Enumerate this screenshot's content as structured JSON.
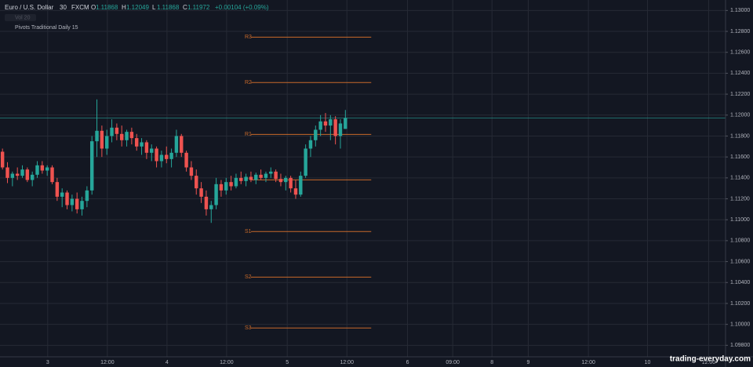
{
  "chart_data": {
    "type": "candlestick",
    "title": "Euro / U.S. Dollar",
    "interval": "30",
    "source": "FXCM",
    "ohlc_letters": [
      "O",
      "H",
      "L",
      "C"
    ],
    "change": "+0.00104 (+0.09%)",
    "volume_label": "Vol 20",
    "indicator": "Pivots Traditional Daily 15",
    "watermark": "trading-everyday.com",
    "up_color": "#26a69a",
    "down_color": "#ef5350",
    "pivot_color": "#c8692a",
    "grid": true,
    "ylim": [
      1.0969,
      1.131
    ],
    "xlim": [
      0,
      146
    ],
    "yticks": [
      {
        "value": 1.13,
        "label": "1.13000"
      },
      {
        "value": 1.128,
        "label": "1.12800"
      },
      {
        "value": 1.126,
        "label": "1.12600"
      },
      {
        "value": 1.124,
        "label": "1.12400"
      },
      {
        "value": 1.122,
        "label": "1.12200"
      },
      {
        "value": 1.12,
        "label": "1.12000"
      },
      {
        "value": 1.118,
        "label": "1.11800"
      },
      {
        "value": 1.116,
        "label": "1.11600"
      },
      {
        "value": 1.114,
        "label": "1.11400"
      },
      {
        "value": 1.112,
        "label": "1.11200"
      },
      {
        "value": 1.11,
        "label": "1.11000"
      },
      {
        "value": 1.108,
        "label": "1.10800"
      },
      {
        "value": 1.106,
        "label": "1.10600"
      },
      {
        "value": 1.104,
        "label": "1.10400"
      },
      {
        "value": 1.102,
        "label": "1.10200"
      },
      {
        "value": 1.1,
        "label": "1.10000"
      },
      {
        "value": 1.098,
        "label": "1.09800"
      }
    ],
    "xticks": [
      {
        "value": 9.6,
        "label": "3"
      },
      {
        "value": 21.6,
        "label": "12:00"
      },
      {
        "value": 33.6,
        "label": "4"
      },
      {
        "value": 45.6,
        "label": "12:00"
      },
      {
        "value": 57.8,
        "label": "5"
      },
      {
        "value": 69.8,
        "label": "12:00"
      },
      {
        "value": 82,
        "label": "6"
      },
      {
        "value": 91.1,
        "label": "09:00"
      },
      {
        "value": 99,
        "label": "8"
      },
      {
        "value": 106.3,
        "label": "9"
      },
      {
        "value": 118.4,
        "label": "12:00"
      },
      {
        "value": 130.3,
        "label": "10"
      },
      {
        "value": 142.6,
        "label": "12:00"
      }
    ],
    "x": [
      0.5,
      1.5,
      2.5,
      3.5,
      4.5,
      5.5,
      6.5,
      7.5,
      8.5,
      9.5,
      10.5,
      11.5,
      12.5,
      13.5,
      14.5,
      15.5,
      16.5,
      17.5,
      18.5,
      19.5,
      20.5,
      21.5,
      22.5,
      23.5,
      24.5,
      25.5,
      26.5,
      27.5,
      28.5,
      29.5,
      30.5,
      31.5,
      32.5,
      33.5,
      34.5,
      35.5,
      36.5,
      37.5,
      38.5,
      39.5,
      40.5,
      41.5,
      42.5,
      43.5,
      44.5,
      45.5,
      46.5,
      47.5,
      48.5,
      49.5,
      50.5,
      51.5,
      52.5,
      53.5,
      54.5,
      55.5,
      56.5,
      57.5,
      58.5,
      59.5,
      60.5,
      61.5,
      62.5,
      63.5,
      64.5,
      65.5,
      66.5,
      67.5,
      68.5,
      69.5
    ],
    "candles": [
      [
        1.1165,
        1.1168,
        1.1148,
        1.115
      ],
      [
        1.115,
        1.1155,
        1.1135,
        1.114
      ],
      [
        1.114,
        1.1146,
        1.1132,
        1.1144
      ],
      [
        1.1144,
        1.115,
        1.1138,
        1.1142
      ],
      [
        1.1142,
        1.1152,
        1.114,
        1.1148
      ],
      [
        1.1148,
        1.115,
        1.1136,
        1.1138
      ],
      [
        1.1138,
        1.1146,
        1.1132,
        1.1143
      ],
      [
        1.1143,
        1.1156,
        1.114,
        1.1152
      ],
      [
        1.1152,
        1.1156,
        1.1144,
        1.1147
      ],
      [
        1.1147,
        1.1152,
        1.1142,
        1.115
      ],
      [
        1.115,
        1.1152,
        1.1134,
        1.1136
      ],
      [
        1.1136,
        1.114,
        1.1118,
        1.1122
      ],
      [
        1.1122,
        1.113,
        1.1112,
        1.1126
      ],
      [
        1.1126,
        1.1128,
        1.111,
        1.1114
      ],
      [
        1.1114,
        1.1124,
        1.1108,
        1.112
      ],
      [
        1.112,
        1.1126,
        1.1106,
        1.111
      ],
      [
        1.111,
        1.1122,
        1.1104,
        1.1118
      ],
      [
        1.1118,
        1.1132,
        1.1112,
        1.1128
      ],
      [
        1.1128,
        1.118,
        1.1124,
        1.1175
      ],
      [
        1.1175,
        1.1215,
        1.116,
        1.1185
      ],
      [
        1.1185,
        1.119,
        1.116,
        1.1168
      ],
      [
        1.1168,
        1.1186,
        1.1162,
        1.118
      ],
      [
        1.118,
        1.1196,
        1.1174,
        1.1188
      ],
      [
        1.1188,
        1.1192,
        1.1176,
        1.1182
      ],
      [
        1.1182,
        1.119,
        1.117,
        1.1176
      ],
      [
        1.1176,
        1.1186,
        1.117,
        1.1184
      ],
      [
        1.1184,
        1.1188,
        1.1172,
        1.1178
      ],
      [
        1.1178,
        1.1182,
        1.1166,
        1.117
      ],
      [
        1.117,
        1.1178,
        1.1162,
        1.1174
      ],
      [
        1.1174,
        1.1176,
        1.1158,
        1.1164
      ],
      [
        1.1164,
        1.1172,
        1.1156,
        1.1168
      ],
      [
        1.1168,
        1.117,
        1.115,
        1.1156
      ],
      [
        1.1156,
        1.1166,
        1.115,
        1.1162
      ],
      [
        1.1162,
        1.117,
        1.1154,
        1.1158
      ],
      [
        1.1158,
        1.1168,
        1.115,
        1.1164
      ],
      [
        1.1164,
        1.1186,
        1.116,
        1.118
      ],
      [
        1.118,
        1.1182,
        1.116,
        1.1164
      ],
      [
        1.1164,
        1.1166,
        1.1146,
        1.115
      ],
      [
        1.115,
        1.1156,
        1.1138,
        1.1142
      ],
      [
        1.1142,
        1.1148,
        1.1124,
        1.113
      ],
      [
        1.113,
        1.1136,
        1.1116,
        1.1122
      ],
      [
        1.1122,
        1.1128,
        1.1104,
        1.111
      ],
      [
        1.111,
        1.1118,
        1.1097,
        1.1114
      ],
      [
        1.1114,
        1.114,
        1.111,
        1.1134
      ],
      [
        1.1134,
        1.1138,
        1.1122,
        1.1128
      ],
      [
        1.1128,
        1.114,
        1.1124,
        1.1136
      ],
      [
        1.1136,
        1.1142,
        1.1128,
        1.1132
      ],
      [
        1.1132,
        1.1144,
        1.113,
        1.114
      ],
      [
        1.114,
        1.1146,
        1.1134,
        1.1137
      ],
      [
        1.1137,
        1.1144,
        1.1132,
        1.1141
      ],
      [
        1.1141,
        1.1146,
        1.1136,
        1.1138
      ],
      [
        1.1138,
        1.1145,
        1.1134,
        1.1143
      ],
      [
        1.1143,
        1.1148,
        1.1138,
        1.114
      ],
      [
        1.114,
        1.1146,
        1.1136,
        1.1144
      ],
      [
        1.1144,
        1.115,
        1.114,
        1.1146
      ],
      [
        1.1146,
        1.1148,
        1.1136,
        1.1139
      ],
      [
        1.1139,
        1.1144,
        1.1132,
        1.1136
      ],
      [
        1.1136,
        1.1142,
        1.1128,
        1.114
      ],
      [
        1.114,
        1.1142,
        1.1126,
        1.113
      ],
      [
        1.113,
        1.1138,
        1.112,
        1.1124
      ],
      [
        1.1124,
        1.1146,
        1.1122,
        1.1142
      ],
      [
        1.1142,
        1.1172,
        1.114,
        1.1168
      ],
      [
        1.1168,
        1.118,
        1.116,
        1.1176
      ],
      [
        1.1176,
        1.119,
        1.117,
        1.1186
      ],
      [
        1.1186,
        1.12,
        1.118,
        1.1194
      ],
      [
        1.1194,
        1.1202,
        1.1184,
        1.119
      ],
      [
        1.119,
        1.12,
        1.1176,
        1.1196
      ],
      [
        1.1196,
        1.1199,
        1.1172,
        1.118
      ],
      [
        1.118,
        1.1196,
        1.1168,
        1.1192
      ],
      [
        1.11868,
        1.12049,
        1.11868,
        1.11972
      ]
    ],
    "pivot_span": [
      50.5,
      74.7
    ],
    "pivots": [
      {
        "name": "R3",
        "value": 1.12745
      },
      {
        "name": "R2",
        "value": 1.12311
      },
      {
        "name": "R1",
        "value": 1.11816
      },
      {
        "name": "P",
        "value": 1.11381
      },
      {
        "name": "S1",
        "value": 1.10887
      },
      {
        "name": "S2",
        "value": 1.10452
      },
      {
        "name": "S3",
        "value": 1.09965
      }
    ]
  }
}
